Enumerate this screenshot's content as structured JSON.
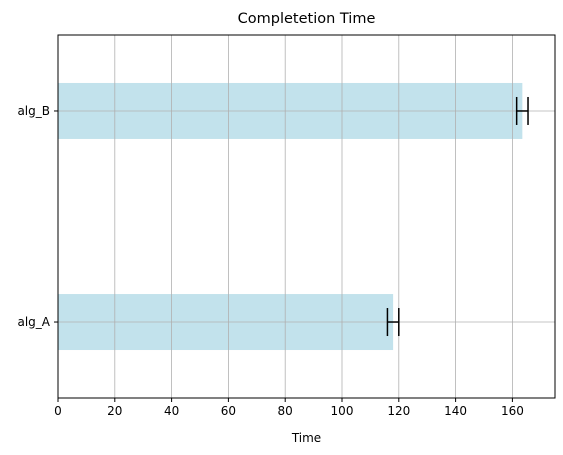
{
  "chart_data": {
    "type": "bar",
    "orientation": "horizontal",
    "title": "Completetion Time",
    "xlabel": "Time",
    "ylabel": "",
    "categories": [
      "alg_A",
      "alg_B"
    ],
    "values": [
      118,
      163.5
    ],
    "errors": [
      2,
      2
    ],
    "xlim": [
      0,
      175
    ],
    "xticks": [
      0,
      20,
      40,
      60,
      80,
      100,
      120,
      140,
      160
    ],
    "grid": true,
    "colors": {
      "bar": "#add8e6",
      "error": "#000000",
      "grid": "#b0b0b0",
      "axis": "#000000"
    }
  }
}
